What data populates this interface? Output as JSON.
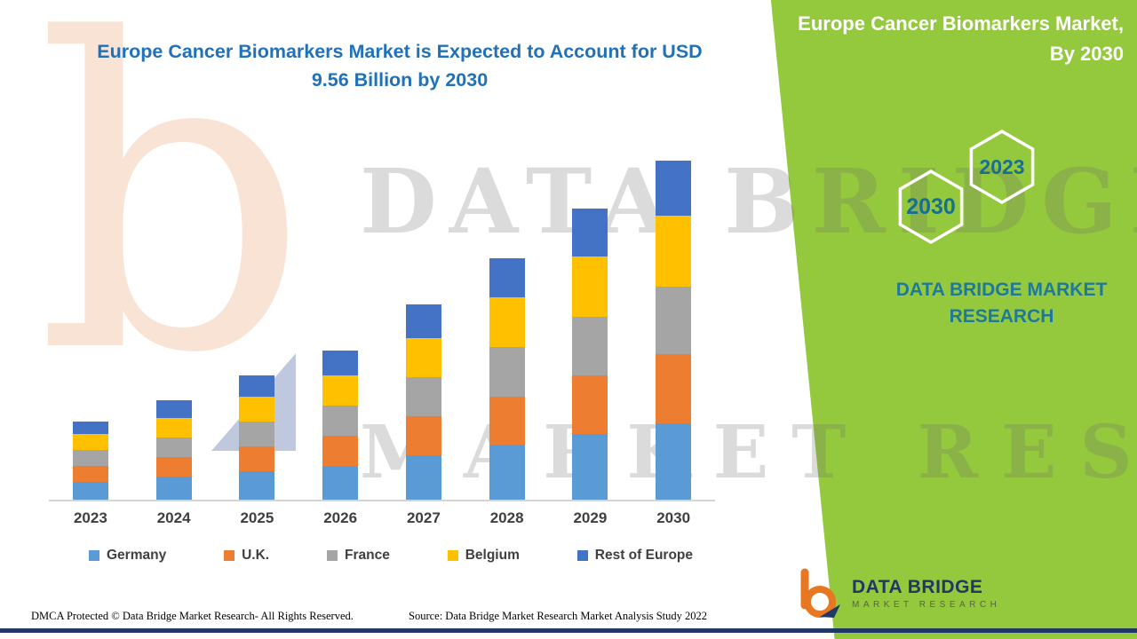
{
  "title": "Europe Cancer Biomarkers Market is Expected to Account for USD 9.56 Billion by 2030",
  "side_panel": {
    "heading": "Europe Cancer Biomarkers Market, By 2030",
    "hexagons": [
      "2030",
      "2023"
    ],
    "brand": "DATA BRIDGE MARKET RESEARCH"
  },
  "watermark": {
    "logo_letter": "b",
    "line1": "DATA BRIDGE",
    "line2": "MARKET RESEARCH"
  },
  "footer": {
    "dmca": "DMCA Protected © Data Bridge Market Research- All Rights Reserved.",
    "source": "Source: Data Bridge Market Research Market Analysis Study 2022"
  },
  "logo": {
    "name": "DATA BRIDGE",
    "sub": "MARKET RESEARCH"
  },
  "colors": {
    "panel_green": "#94C83D",
    "title_blue": "#2071B8",
    "hexagon_text_teal": "#17708F",
    "brand_navy": "#1F3864",
    "logo_orange": "#E87722"
  },
  "chart_data": {
    "type": "bar",
    "stacked": true,
    "title": "Europe Cancer Biomarkers Market is Expected to Account for USD 9.56 Billion by 2030",
    "unit": "USD Billion",
    "categories": [
      "2023",
      "2024",
      "2025",
      "2026",
      "2027",
      "2028",
      "2029",
      "2030"
    ],
    "series": [
      {
        "name": "Germany",
        "color": "#5B9BD5",
        "values": [
          0.5,
          0.65,
          0.8,
          0.95,
          1.25,
          1.55,
          1.85,
          2.15
        ]
      },
      {
        "name": "U.K.",
        "color": "#ED7D31",
        "values": [
          0.45,
          0.55,
          0.7,
          0.85,
          1.1,
          1.35,
          1.65,
          1.95
        ]
      },
      {
        "name": "France",
        "color": "#A5A5A5",
        "values": [
          0.45,
          0.55,
          0.7,
          0.85,
          1.1,
          1.4,
          1.65,
          1.9
        ]
      },
      {
        "name": "Belgium",
        "color": "#FFC000",
        "values": [
          0.45,
          0.55,
          0.7,
          0.85,
          1.1,
          1.4,
          1.7,
          2.0
        ]
      },
      {
        "name": "Rest of Europe",
        "color": "#4472C4",
        "values": [
          0.35,
          0.5,
          0.6,
          0.7,
          0.95,
          1.1,
          1.35,
          1.56
        ]
      }
    ],
    "totals": [
      2.2,
      2.8,
      3.5,
      4.2,
      5.5,
      6.8,
      8.2,
      9.56
    ],
    "ylim": [
      0,
      10
    ],
    "grid": false,
    "legend_position": "bottom",
    "xlabel": "",
    "ylabel": ""
  }
}
